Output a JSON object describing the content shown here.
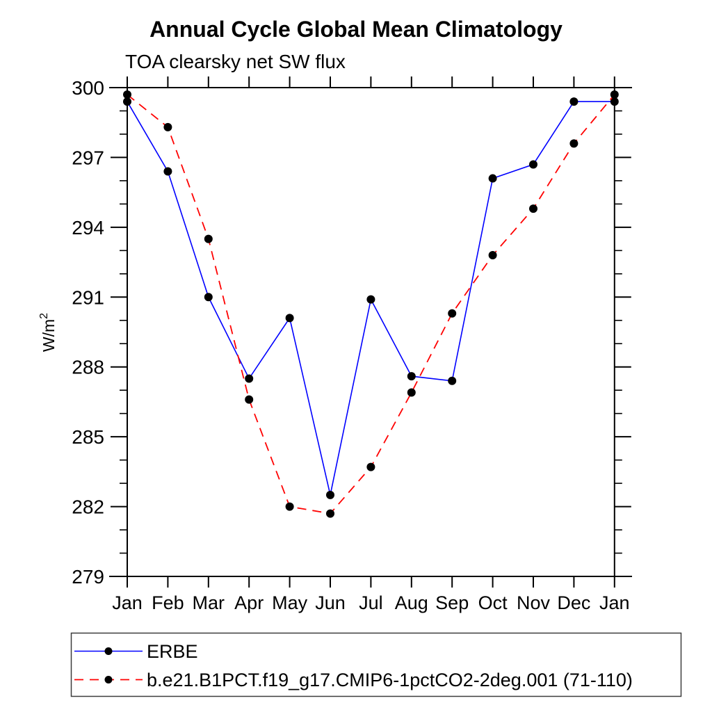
{
  "chart_data": {
    "type": "line",
    "title": "Annual Cycle Global Mean Climatology",
    "subtitle": "TOA clearsky net SW flux",
    "ylabel": "W/m2",
    "ylabel_base": "W/m",
    "ylabel_sup": "2",
    "categories": [
      "Jan",
      "Feb",
      "Mar",
      "Apr",
      "May",
      "Jun",
      "Jul",
      "Aug",
      "Sep",
      "Oct",
      "Nov",
      "Dec",
      "Jan"
    ],
    "ylim": [
      279,
      300
    ],
    "ytick_step": 3,
    "yminor_step": 1,
    "ytick_labels": [
      "279",
      "282",
      "285",
      "288",
      "291",
      "294",
      "297",
      "300"
    ],
    "grid": false,
    "legend_position": "bottom",
    "axis_color": "#000000",
    "marker_color": "#000000",
    "series": [
      {
        "name": "ERBE",
        "color": "#0000ff",
        "line_style": "solid",
        "marker": "dot",
        "values": [
          299.4,
          296.4,
          291.0,
          287.5,
          290.1,
          282.5,
          290.9,
          287.6,
          287.4,
          296.1,
          296.7,
          299.4,
          299.4
        ]
      },
      {
        "name": "b.e21.B1PCT.f19_g17.CMIP6-1pctCO2-2deg.001 (71-110)",
        "color": "#ff0000",
        "line_style": "dashed",
        "marker": "dot",
        "values": [
          299.7,
          298.3,
          293.5,
          286.6,
          282.0,
          281.7,
          283.7,
          286.9,
          290.3,
          292.8,
          294.8,
          297.6,
          299.7
        ]
      }
    ]
  }
}
